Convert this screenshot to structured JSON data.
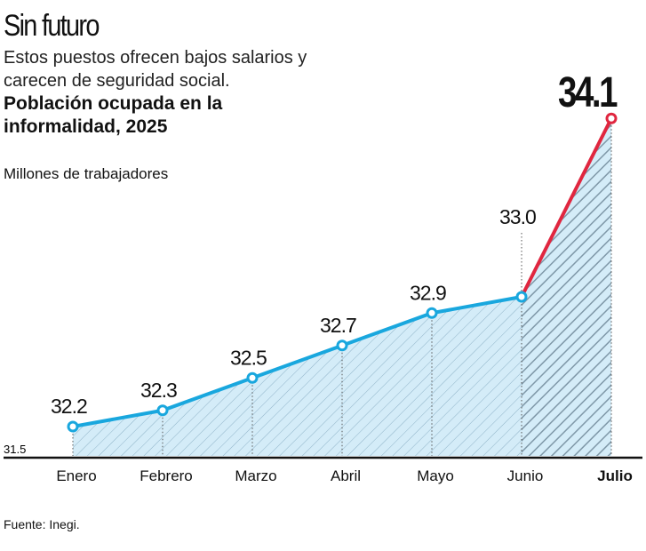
{
  "header": {
    "title": "Sin futuro",
    "subtitle": "Estos puestos ofrecen bajos salarios y carecen de seguridad social."
  },
  "chart_data": {
    "type": "line",
    "title": "Población ocupada en la informalidad, 2025",
    "ylabel": "Millones de trabajadores",
    "categories": [
      "Enero",
      "Febrero",
      "Marzo",
      "Abril",
      "Mayo",
      "Junio",
      "Julio"
    ],
    "values": [
      32.2,
      32.3,
      32.5,
      32.7,
      32.9,
      33.0,
      34.1
    ],
    "data_labels": [
      "32.2",
      "32.3",
      "32.5",
      "32.7",
      "32.9",
      "33.0",
      "34.1"
    ],
    "y_baseline_label": "31.5",
    "grid": false,
    "colors": {
      "line": "#19a7de",
      "highlight": "#e0263f",
      "fill": "#d4ecf8",
      "hatch": "#8fb3c8"
    }
  },
  "footer": {
    "source": "Fuente: Inegi."
  }
}
